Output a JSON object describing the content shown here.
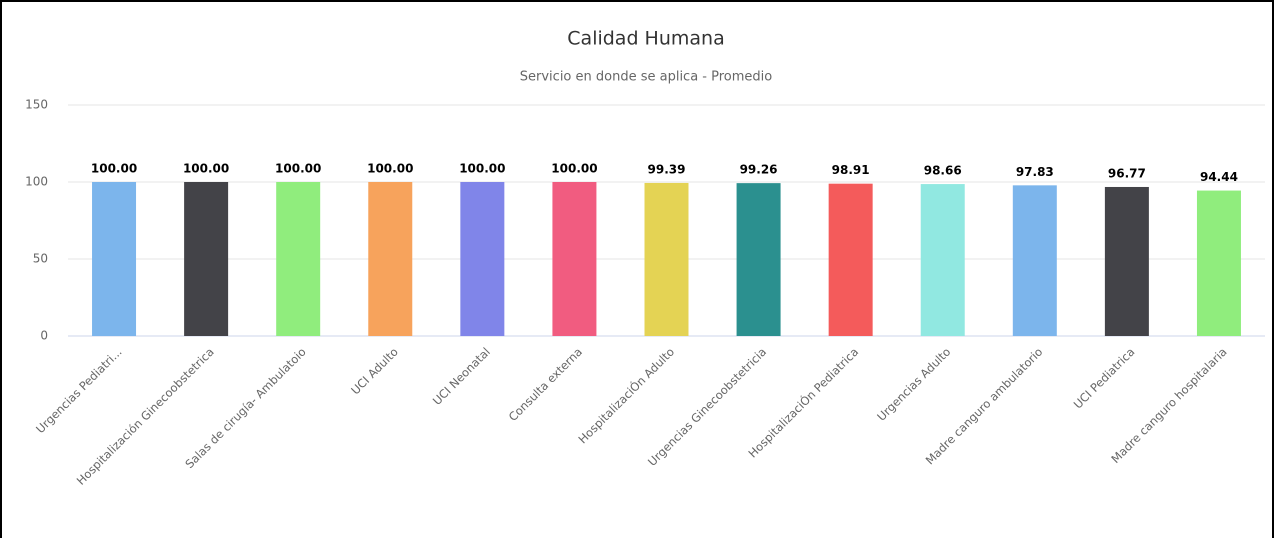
{
  "chart_data": {
    "type": "bar",
    "title": "Calidad Humana",
    "subtitle": "Servicio en donde se aplica - Promedio",
    "categories": [
      "Urgencias Pediatri...",
      "Hospitalización Ginecoobstetrica",
      "Salas de cirugía- Ambulatoio",
      "UCI Adulto",
      "UCI Neonatal",
      "Consulta externa",
      "HospitalizaciÓn Adulto",
      "Urgencias Ginecoobstetricia",
      "HospitalizaciÓn Pediatrica",
      "Urgencias Adulto",
      "Madre canguro ambulatorio",
      "UCI Pediatrica",
      "Madre canguro hospitalaria"
    ],
    "values": [
      100,
      100,
      100,
      100,
      100,
      100,
      99.39,
      99.26,
      98.91,
      98.66,
      97.83,
      96.77,
      94.44
    ],
    "value_labels": [
      "100.00",
      "100.00",
      "100.00",
      "100.00",
      "100.00",
      "100.00",
      "99.39",
      "99.26",
      "98.91",
      "98.66",
      "97.83",
      "96.77",
      "94.44"
    ],
    "colors": [
      "#7cb5ec",
      "#434348",
      "#90ed7d",
      "#f7a35c",
      "#8085e9",
      "#f15c80",
      "#e4d354",
      "#2b908f",
      "#f45b5b",
      "#91e8e1",
      "#7cb5ec",
      "#434348",
      "#90ed7d"
    ],
    "ylim": [
      0,
      150
    ],
    "yticks": [
      0,
      50,
      100,
      150
    ],
    "grid": true
  }
}
